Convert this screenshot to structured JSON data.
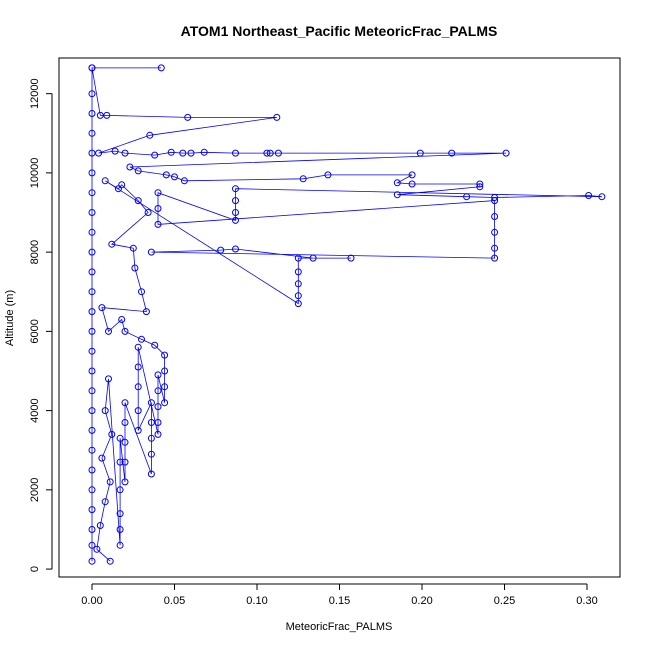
{
  "chart_data": {
    "type": "scatter",
    "title": "ATOM1 Northeast_Pacific MeteoricFrac_PALMS",
    "xlabel": "MeteoricFrac_PALMS",
    "ylabel": "Altitude (m)",
    "xlim": [
      -0.02,
      0.32
    ],
    "ylim": [
      -200,
      12900
    ],
    "x_ticks": [
      0.0,
      0.05,
      0.1,
      0.15,
      0.2,
      0.25,
      0.3
    ],
    "x_tick_labels": [
      "0.00",
      "0.05",
      "0.10",
      "0.15",
      "0.20",
      "0.25",
      "0.30"
    ],
    "y_ticks": [
      0,
      2000,
      4000,
      6000,
      8000,
      10000,
      12000
    ],
    "y_tick_labels": [
      "0",
      "2000",
      "4000",
      "6000",
      "8000",
      "10000",
      "12000"
    ],
    "grid": false,
    "legend": "none",
    "series_color": "#0000ff",
    "marker": "open-circle",
    "connected_with_lines": true,
    "series": [
      {
        "values": [
          {
            "x": 0.0,
            "y": 200
          },
          {
            "x": 0.0,
            "y": 600
          },
          {
            "x": 0.0,
            "y": 1000
          },
          {
            "x": 0.0,
            "y": 1500
          },
          {
            "x": 0.0,
            "y": 2000
          },
          {
            "x": 0.0,
            "y": 2500
          },
          {
            "x": 0.0,
            "y": 3000
          },
          {
            "x": 0.0,
            "y": 3500
          },
          {
            "x": 0.0,
            "y": 4000
          },
          {
            "x": 0.0,
            "y": 4500
          },
          {
            "x": 0.0,
            "y": 5000
          },
          {
            "x": 0.0,
            "y": 5500
          },
          {
            "x": 0.0,
            "y": 6000
          },
          {
            "x": 0.0,
            "y": 6500
          },
          {
            "x": 0.0,
            "y": 7000
          },
          {
            "x": 0.0,
            "y": 7500
          },
          {
            "x": 0.0,
            "y": 8000
          },
          {
            "x": 0.0,
            "y": 8500
          },
          {
            "x": 0.0,
            "y": 9000
          },
          {
            "x": 0.0,
            "y": 9500
          },
          {
            "x": 0.0,
            "y": 10000
          },
          {
            "x": 0.0,
            "y": 10500
          },
          {
            "x": 0.0,
            "y": 11000
          },
          {
            "x": 0.0,
            "y": 11500
          },
          {
            "x": 0.0,
            "y": 12000
          },
          {
            "x": 0.0,
            "y": 12650
          },
          {
            "x": 0.042,
            "y": 12650
          },
          {
            "x": 0.0,
            "y": 12650
          },
          {
            "x": 0.005,
            "y": 11450
          },
          {
            "x": 0.009,
            "y": 11450
          },
          {
            "x": 0.058,
            "y": 11400
          },
          {
            "x": 0.112,
            "y": 11400
          },
          {
            "x": 0.035,
            "y": 10950
          },
          {
            "x": 0.004,
            "y": 10500
          },
          {
            "x": 0.014,
            "y": 10550
          },
          {
            "x": 0.02,
            "y": 10500
          },
          {
            "x": 0.038,
            "y": 10450
          },
          {
            "x": 0.048,
            "y": 10520
          },
          {
            "x": 0.055,
            "y": 10500
          },
          {
            "x": 0.06,
            "y": 10500
          },
          {
            "x": 0.068,
            "y": 10520
          },
          {
            "x": 0.087,
            "y": 10500
          },
          {
            "x": 0.106,
            "y": 10500
          },
          {
            "x": 0.108,
            "y": 10500
          },
          {
            "x": 0.113,
            "y": 10500
          },
          {
            "x": 0.199,
            "y": 10500
          },
          {
            "x": 0.218,
            "y": 10500
          },
          {
            "x": 0.251,
            "y": 10500
          },
          {
            "x": 0.023,
            "y": 10150
          },
          {
            "x": 0.028,
            "y": 10050
          },
          {
            "x": 0.045,
            "y": 9950
          },
          {
            "x": 0.05,
            "y": 9900
          },
          {
            "x": 0.056,
            "y": 9800
          },
          {
            "x": 0.128,
            "y": 9850
          },
          {
            "x": 0.143,
            "y": 9950
          },
          {
            "x": 0.194,
            "y": 9950
          },
          {
            "x": 0.185,
            "y": 9750
          },
          {
            "x": 0.194,
            "y": 9720
          },
          {
            "x": 0.235,
            "y": 9720
          },
          {
            "x": 0.235,
            "y": 9650
          },
          {
            "x": 0.185,
            "y": 9450
          },
          {
            "x": 0.227,
            "y": 9400
          },
          {
            "x": 0.244,
            "y": 9380
          },
          {
            "x": 0.301,
            "y": 9430
          },
          {
            "x": 0.309,
            "y": 9400
          },
          {
            "x": 0.087,
            "y": 9600
          },
          {
            "x": 0.087,
            "y": 9300
          },
          {
            "x": 0.087,
            "y": 9000
          },
          {
            "x": 0.087,
            "y": 8800
          },
          {
            "x": 0.04,
            "y": 9500
          },
          {
            "x": 0.04,
            "y": 9100
          },
          {
            "x": 0.04,
            "y": 8700
          },
          {
            "x": 0.244,
            "y": 9300
          },
          {
            "x": 0.244,
            "y": 8900
          },
          {
            "x": 0.244,
            "y": 8500
          },
          {
            "x": 0.244,
            "y": 8100
          },
          {
            "x": 0.244,
            "y": 7850
          },
          {
            "x": 0.036,
            "y": 8000
          },
          {
            "x": 0.078,
            "y": 8050
          },
          {
            "x": 0.087,
            "y": 8080
          },
          {
            "x": 0.134,
            "y": 7850
          },
          {
            "x": 0.157,
            "y": 7850
          },
          {
            "x": 0.125,
            "y": 7850
          },
          {
            "x": 0.125,
            "y": 7500
          },
          {
            "x": 0.125,
            "y": 7200
          },
          {
            "x": 0.125,
            "y": 6900
          },
          {
            "x": 0.125,
            "y": 6700
          },
          {
            "x": 0.008,
            "y": 9800
          },
          {
            "x": 0.016,
            "y": 9600
          },
          {
            "x": 0.018,
            "y": 9700
          },
          {
            "x": 0.028,
            "y": 9300
          },
          {
            "x": 0.034,
            "y": 9000
          },
          {
            "x": 0.012,
            "y": 8200
          },
          {
            "x": 0.025,
            "y": 8100
          },
          {
            "x": 0.026,
            "y": 7600
          },
          {
            "x": 0.03,
            "y": 7000
          },
          {
            "x": 0.033,
            "y": 6500
          },
          {
            "x": 0.006,
            "y": 6600
          },
          {
            "x": 0.01,
            "y": 6000
          },
          {
            "x": 0.018,
            "y": 6300
          },
          {
            "x": 0.02,
            "y": 6000
          },
          {
            "x": 0.03,
            "y": 5800
          },
          {
            "x": 0.038,
            "y": 5650
          },
          {
            "x": 0.044,
            "y": 5400
          },
          {
            "x": 0.044,
            "y": 5000
          },
          {
            "x": 0.044,
            "y": 4600
          },
          {
            "x": 0.044,
            "y": 4200
          },
          {
            "x": 0.04,
            "y": 4900
          },
          {
            "x": 0.04,
            "y": 4500
          },
          {
            "x": 0.04,
            "y": 4100
          },
          {
            "x": 0.04,
            "y": 3700
          },
          {
            "x": 0.04,
            "y": 3400
          },
          {
            "x": 0.028,
            "y": 5600
          },
          {
            "x": 0.028,
            "y": 5100
          },
          {
            "x": 0.028,
            "y": 4600
          },
          {
            "x": 0.028,
            "y": 4000
          },
          {
            "x": 0.028,
            "y": 3500
          },
          {
            "x": 0.036,
            "y": 4200
          },
          {
            "x": 0.036,
            "y": 3700
          },
          {
            "x": 0.036,
            "y": 3300
          },
          {
            "x": 0.036,
            "y": 2900
          },
          {
            "x": 0.036,
            "y": 2400
          },
          {
            "x": 0.02,
            "y": 4200
          },
          {
            "x": 0.02,
            "y": 3700
          },
          {
            "x": 0.02,
            "y": 3200
          },
          {
            "x": 0.02,
            "y": 2700
          },
          {
            "x": 0.02,
            "y": 2200
          },
          {
            "x": 0.017,
            "y": 3300
          },
          {
            "x": 0.017,
            "y": 2700
          },
          {
            "x": 0.017,
            "y": 2000
          },
          {
            "x": 0.017,
            "y": 1400
          },
          {
            "x": 0.017,
            "y": 1000
          },
          {
            "x": 0.017,
            "y": 600
          },
          {
            "x": 0.01,
            "y": 4800
          },
          {
            "x": 0.008,
            "y": 4000
          },
          {
            "x": 0.012,
            "y": 3400
          },
          {
            "x": 0.006,
            "y": 2800
          },
          {
            "x": 0.011,
            "y": 2200
          },
          {
            "x": 0.008,
            "y": 1700
          },
          {
            "x": 0.005,
            "y": 1100
          },
          {
            "x": 0.003,
            "y": 500
          },
          {
            "x": 0.011,
            "y": 200
          }
        ]
      }
    ]
  }
}
